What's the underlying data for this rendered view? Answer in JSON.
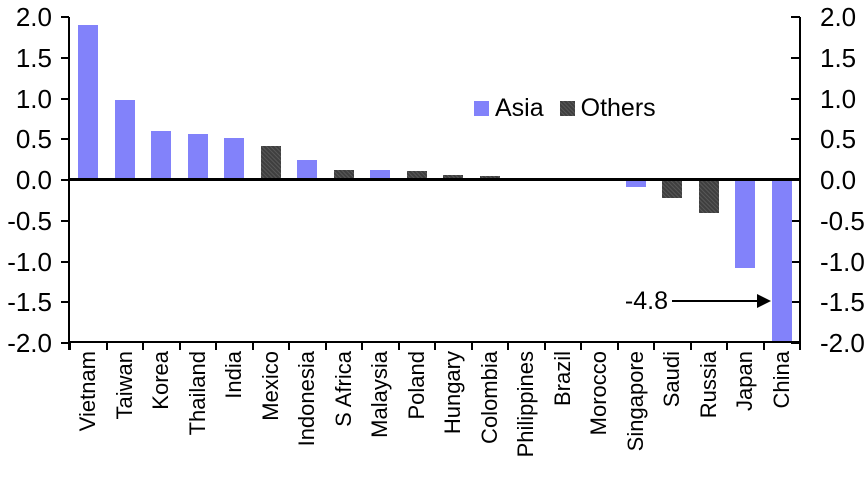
{
  "chart_data": {
    "type": "bar",
    "title": "",
    "categories": [
      "Vietnam",
      "Taiwan",
      "Korea",
      "Thailand",
      "India",
      "Mexico",
      "Indonesia",
      "S Africa",
      "Malaysia",
      "Poland",
      "Hungary",
      "Colombia",
      "Philippines",
      "Brazil",
      "Morocco",
      "Singapore",
      "Saudi",
      "Russia",
      "Japan",
      "China"
    ],
    "values": [
      1.9,
      0.98,
      0.6,
      0.57,
      0.52,
      0.42,
      0.24,
      0.12,
      0.12,
      0.11,
      0.06,
      0.05,
      0.0,
      0.0,
      0.0,
      -0.08,
      -0.22,
      -0.4,
      -1.08,
      -4.8
    ],
    "groups": [
      "Asia",
      "Asia",
      "Asia",
      "Asia",
      "Asia",
      "Others",
      "Asia",
      "Others",
      "Asia",
      "Others",
      "Others",
      "Others",
      "Asia",
      "Others",
      "Others",
      "Asia",
      "Others",
      "Others",
      "Asia",
      "Asia"
    ],
    "legend": [
      {
        "name": "Asia",
        "color": "#8282fa"
      },
      {
        "name": "Others",
        "color": "#3f3f3f"
      }
    ],
    "legend_position": "inside-top-center-right",
    "ylim": [
      -2.0,
      2.0
    ],
    "ytick_labels": [
      "2.0",
      "1.5",
      "1.0",
      "0.5",
      "0.0",
      "-0.5",
      "-1.0",
      "-1.5",
      "-2.0"
    ],
    "dual_y_axis": true,
    "grid": false,
    "xlabel": "",
    "ylabel": "",
    "bar_clip": {
      "category": "China",
      "clipped_at": -2.0,
      "actual_value": -4.8
    },
    "annotation": {
      "text": "-4.8",
      "points_to": "China",
      "arrow": "right"
    }
  },
  "colors": {
    "axis": "#000000",
    "background": "#ffffff",
    "asia_bar": "#8282fa",
    "others_bar": "#3f3f3f"
  }
}
